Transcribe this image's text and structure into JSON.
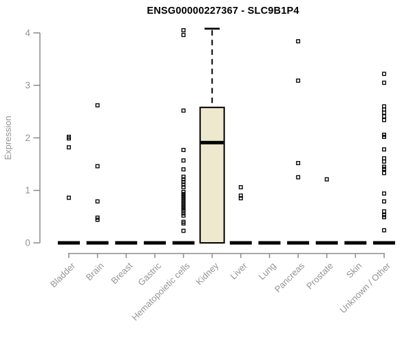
{
  "title": "ENSG00000227367 - SLC9B1P4",
  "colors": {
    "axis_line": "#8a8a8a",
    "axis_text": "#949494",
    "title_text": "#000000",
    "box_fill": "#ede8ce",
    "box_stroke": "#000000",
    "point_stroke": "#000000",
    "median_fill": "#000000",
    "background": "#ffffff"
  },
  "chart_data": {
    "type": "boxplot",
    "title": "ENSG00000227367 - SLC9B1P4",
    "xlabel": "",
    "ylabel": "Expression",
    "ylim": [
      0,
      4.2
    ],
    "yticks": [
      0,
      1,
      2,
      3,
      4
    ],
    "grid": false,
    "legend": "none",
    "categories": [
      "Bladder",
      "Brain",
      "Breast",
      "Gastric",
      "Hematopoietic cells",
      "Kidney",
      "Liver",
      "Lung",
      "Pancreas",
      "Prostate",
      "Skin",
      "Unknown / Other"
    ],
    "boxes": [
      {
        "category": "Bladder",
        "q1": 0,
        "median": 0,
        "q3": 0,
        "whisker_low": 0,
        "whisker_high": 0,
        "points": [
          2.02,
          1.99,
          1.82,
          0.86
        ]
      },
      {
        "category": "Brain",
        "q1": 0,
        "median": 0,
        "q3": 0,
        "whisker_low": 0,
        "whisker_high": 0,
        "points": [
          2.62,
          1.46,
          0.79,
          0.48,
          0.44
        ]
      },
      {
        "category": "Breast",
        "q1": 0,
        "median": 0,
        "q3": 0,
        "whisker_low": 0,
        "whisker_high": 0,
        "points": []
      },
      {
        "category": "Gastric",
        "q1": 0,
        "median": 0,
        "q3": 0,
        "whisker_low": 0,
        "whisker_high": 0,
        "points": []
      },
      {
        "category": "Hematopoietic cells",
        "q1": 0,
        "median": 0,
        "q3": 0,
        "whisker_low": 0,
        "whisker_high": 0,
        "points": [
          4.05,
          3.96,
          2.52,
          1.77,
          1.57,
          1.4,
          1.26,
          1.21,
          1.16,
          1.11,
          1.06,
          0.97,
          0.93,
          0.89,
          0.85,
          0.81,
          0.77,
          0.73,
          0.69,
          0.65,
          0.61,
          0.56,
          0.52,
          0.4,
          0.37,
          0.23
        ]
      },
      {
        "category": "Kidney",
        "q1": 0,
        "median": 1.91,
        "q3": 2.58,
        "whisker_low": 0,
        "whisker_high": 4.08,
        "points": []
      },
      {
        "category": "Liver",
        "q1": 0,
        "median": 0,
        "q3": 0,
        "whisker_low": 0,
        "whisker_high": 0,
        "points": [
          1.06,
          0.9,
          0.85
        ]
      },
      {
        "category": "Lung",
        "q1": 0,
        "median": 0,
        "q3": 0,
        "whisker_low": 0,
        "whisker_high": 0,
        "points": []
      },
      {
        "category": "Pancreas",
        "q1": 0,
        "median": 0,
        "q3": 0,
        "whisker_low": 0,
        "whisker_high": 0,
        "points": [
          3.84,
          3.09,
          1.52,
          1.25
        ]
      },
      {
        "category": "Prostate",
        "q1": 0,
        "median": 0,
        "q3": 0,
        "whisker_low": 0,
        "whisker_high": 0,
        "points": [
          1.21
        ]
      },
      {
        "category": "Skin",
        "q1": 0,
        "median": 0,
        "q3": 0,
        "whisker_low": 0,
        "whisker_high": 0,
        "points": []
      },
      {
        "category": "Unknown / Other",
        "q1": 0,
        "median": 0,
        "q3": 0,
        "whisker_low": 0,
        "whisker_high": 0,
        "points": [
          3.22,
          3.05,
          2.6,
          2.54,
          2.48,
          2.41,
          2.34,
          2.06,
          2.02,
          1.78,
          1.61,
          1.55,
          1.45,
          1.41,
          1.33,
          0.94,
          0.79,
          0.6,
          0.53,
          0.49,
          0.24
        ]
      }
    ]
  }
}
